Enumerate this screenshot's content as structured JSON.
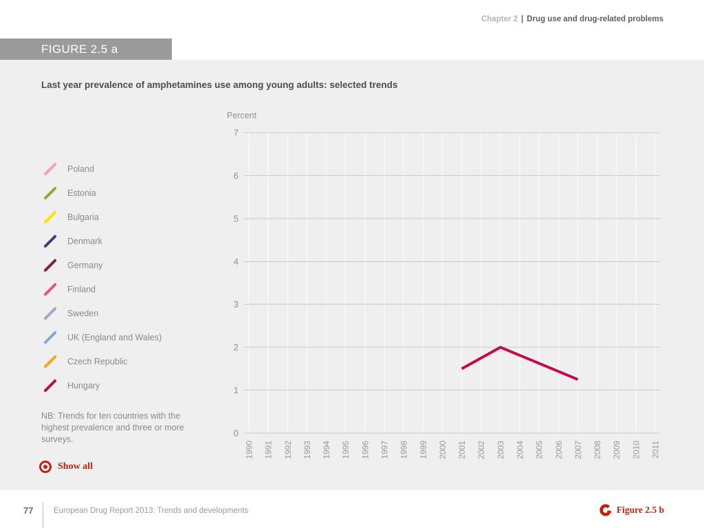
{
  "header": {
    "chapter": "Chapter 2",
    "separator": "|",
    "section": "Drug use and drug-related problems"
  },
  "figure_banner": "FIGURE 2.5 a",
  "note": "NB: Trends for ten countries with the highest prevalence and three or more surveys.",
  "show_all_label": "Show all",
  "footer": {
    "page_number": "77",
    "report_title": "European Drug Report 2013: Trends and developments",
    "next_figure_label": "Figure 2.5 b"
  },
  "legend": {
    "items": [
      {
        "label": "Poland",
        "color": "#f0a0c3"
      },
      {
        "label": "Estonia",
        "color": "#85b229"
      },
      {
        "label": "Bulgaria",
        "color": "#fbe10a"
      },
      {
        "label": "Denmark",
        "color": "#46398a"
      },
      {
        "label": "Germany",
        "color": "#7b2142"
      },
      {
        "label": "Finland",
        "color": "#ea4e8e"
      },
      {
        "label": "Sweden",
        "color": "#a7a6ca"
      },
      {
        "label": "UK (England and Wales)",
        "color": "#7cabe2"
      },
      {
        "label": "Czech Republic",
        "color": "#f5a71f"
      },
      {
        "label": "Hungary",
        "color": "#c40a50"
      }
    ]
  },
  "chart_data": {
    "type": "line",
    "title": "Last year prevalence of amphetamines use among young adults: selected trends",
    "ylabel": "Percent",
    "xlabel": "",
    "ylim": [
      0,
      7
    ],
    "yticks": [
      0,
      1,
      2,
      3,
      4,
      5,
      6,
      7
    ],
    "x_categories": [
      "1990",
      "1991",
      "1992",
      "1993",
      "1994",
      "1995",
      "1996",
      "1997",
      "1998",
      "1999",
      "2000",
      "2001",
      "2002",
      "2003",
      "2004",
      "2005",
      "2006",
      "2007",
      "2008",
      "2009",
      "2010",
      "2011"
    ],
    "grid": {
      "horizontal_color": "#c9c9c9",
      "vertical_color": "#f7f7f7",
      "horizontal": true,
      "vertical": true
    },
    "legend_position": "left",
    "legend_entries": [
      "Poland",
      "Estonia",
      "Bulgaria",
      "Denmark",
      "Germany",
      "Finland",
      "Sweden",
      "UK (England and Wales)",
      "Czech Republic",
      "Hungary"
    ],
    "series": [
      {
        "name": "Hungary",
        "color": "#c40a50",
        "points": [
          [
            2001,
            1.5
          ],
          [
            2003,
            2.0
          ],
          [
            2007,
            1.25
          ]
        ]
      }
    ]
  },
  "colors": {
    "banner_gray": "#9b9b9b",
    "content_bg": "#efefef",
    "accent_red": "#c2210f",
    "axis_text": "#8f8f8f"
  }
}
